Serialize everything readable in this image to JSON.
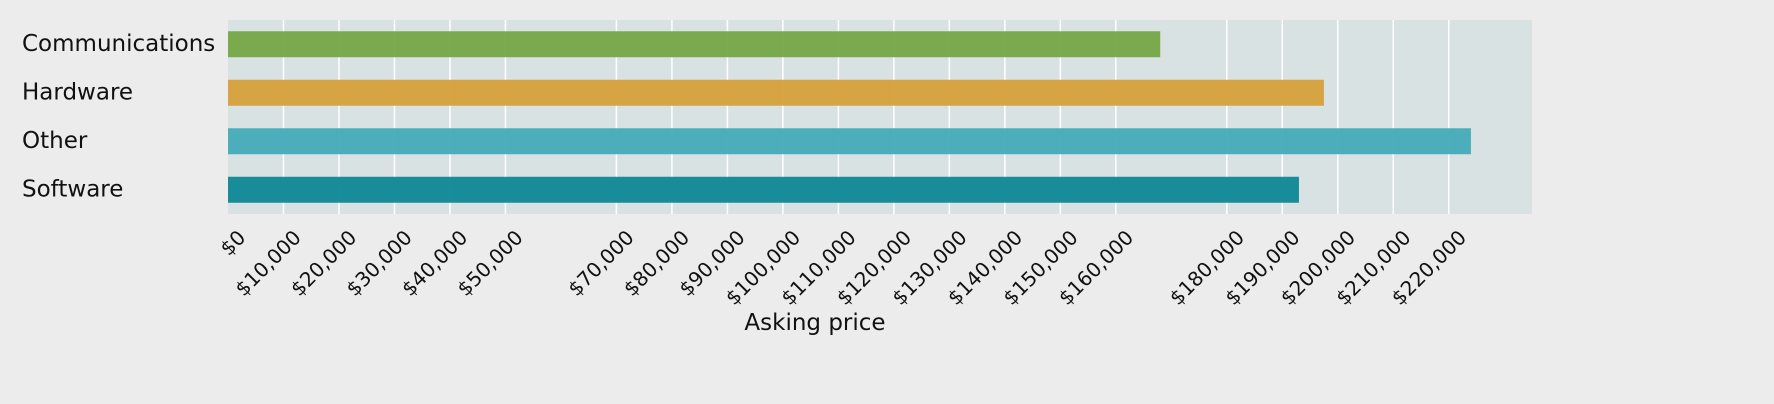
{
  "chart_data": {
    "type": "hbar",
    "x_label": "Asking price",
    "categories": [
      "Communications",
      "Hardware",
      "Other",
      "Software"
    ],
    "values": [
      168000,
      197500,
      224000,
      193000
    ],
    "colors": [
      "#76a546",
      "#d6a03a",
      "#44aab8",
      "#0e8794"
    ],
    "xlim": [
      0,
      235000
    ],
    "xticks": [
      {
        "value": 0,
        "label": "$0"
      },
      {
        "value": 10000,
        "label": "$10,000"
      },
      {
        "value": 20000,
        "label": "$20,000"
      },
      {
        "value": 30000,
        "label": "$30,000"
      },
      {
        "value": 40000,
        "label": "$40,000"
      },
      {
        "value": 50000,
        "label": "$50,000"
      },
      {
        "value": 70000,
        "label": "$70,000"
      },
      {
        "value": 80000,
        "label": "$80,000"
      },
      {
        "value": 90000,
        "label": "$90,000"
      },
      {
        "value": 100000,
        "label": "$100,000"
      },
      {
        "value": 110000,
        "label": "$110,000"
      },
      {
        "value": 120000,
        "label": "$120,000"
      },
      {
        "value": 130000,
        "label": "$130,000"
      },
      {
        "value": 140000,
        "label": "$140,000"
      },
      {
        "value": 150000,
        "label": "$150,000"
      },
      {
        "value": 160000,
        "label": "$160,000"
      },
      {
        "value": 180000,
        "label": "$180,000"
      },
      {
        "value": 190000,
        "label": "$190,000"
      },
      {
        "value": 200000,
        "label": "$200,000"
      },
      {
        "value": 210000,
        "label": "$210,000"
      },
      {
        "value": 220000,
        "label": "$220,000"
      }
    ],
    "grid": true
  }
}
